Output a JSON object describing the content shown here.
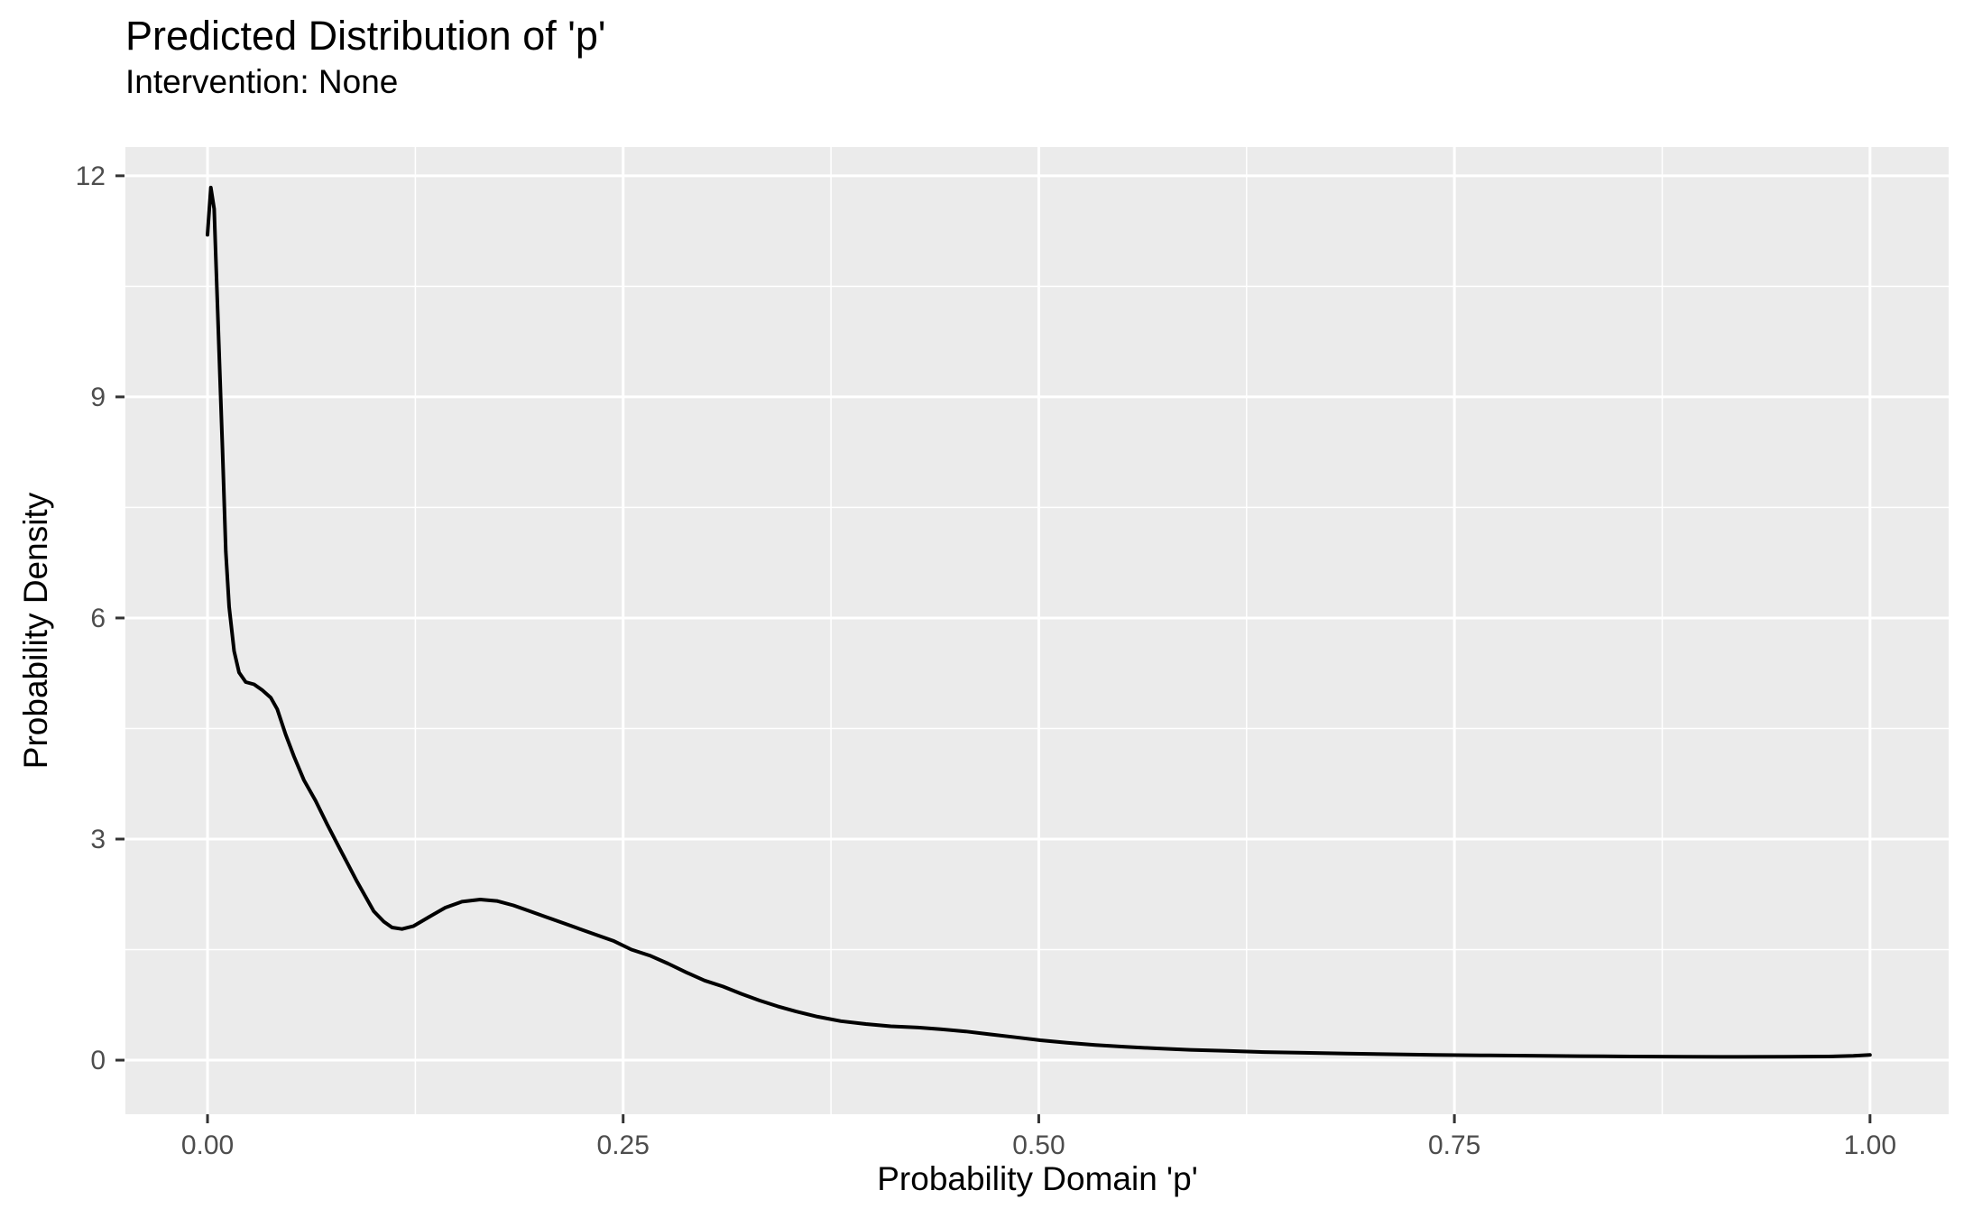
{
  "chart_data": {
    "type": "line",
    "title": "Predicted Distribution of 'p'",
    "subtitle": "Intervention: None",
    "xlabel": "Probability Domain 'p'",
    "ylabel": "Probability Density",
    "legend_position": "none",
    "panel_background": "#EBEBEB",
    "grid": {
      "major_color": "#FFFFFF",
      "minor_color": "#FFFFFF",
      "major": true,
      "minor": true
    },
    "tick_mark_color": "#333333",
    "tick_label_color": "#4d4d4d",
    "xlim": [
      -0.0494,
      1.0473
    ],
    "ylim": [
      -0.734,
      12.39
    ],
    "x_ticks": {
      "values": [
        0,
        0.25,
        0.5,
        0.75,
        1.0
      ],
      "labels": [
        "0.00",
        "0.25",
        "0.50",
        "0.75",
        "1.00"
      ]
    },
    "y_ticks": {
      "values": [
        0,
        3,
        6,
        9,
        12
      ],
      "labels": [
        "0",
        "3",
        "6",
        "9",
        "12"
      ]
    },
    "series": [
      {
        "name": "predicted-density-of-p",
        "color": "#000000",
        "width": 4,
        "points": [
          [
            0.0,
            11.2
          ],
          [
            0.002,
            11.84
          ],
          [
            0.004,
            11.55
          ],
          [
            0.005,
            10.9
          ],
          [
            0.007,
            9.6
          ],
          [
            0.009,
            8.3
          ],
          [
            0.011,
            6.9
          ],
          [
            0.013,
            6.15
          ],
          [
            0.016,
            5.55
          ],
          [
            0.019,
            5.26
          ],
          [
            0.023,
            5.13
          ],
          [
            0.028,
            5.1
          ],
          [
            0.033,
            5.02
          ],
          [
            0.038,
            4.92
          ],
          [
            0.042,
            4.76
          ],
          [
            0.047,
            4.42
          ],
          [
            0.052,
            4.12
          ],
          [
            0.058,
            3.8
          ],
          [
            0.065,
            3.52
          ],
          [
            0.072,
            3.2
          ],
          [
            0.08,
            2.85
          ],
          [
            0.09,
            2.42
          ],
          [
            0.1,
            2.02
          ],
          [
            0.106,
            1.88
          ],
          [
            0.111,
            1.8
          ],
          [
            0.117,
            1.78
          ],
          [
            0.124,
            1.82
          ],
          [
            0.133,
            1.94
          ],
          [
            0.143,
            2.07
          ],
          [
            0.153,
            2.15
          ],
          [
            0.164,
            2.18
          ],
          [
            0.174,
            2.16
          ],
          [
            0.184,
            2.1
          ],
          [
            0.194,
            2.02
          ],
          [
            0.204,
            1.94
          ],
          [
            0.214,
            1.86
          ],
          [
            0.224,
            1.78
          ],
          [
            0.234,
            1.7
          ],
          [
            0.244,
            1.62
          ],
          [
            0.255,
            1.5
          ],
          [
            0.266,
            1.42
          ],
          [
            0.277,
            1.31
          ],
          [
            0.288,
            1.19
          ],
          [
            0.299,
            1.08
          ],
          [
            0.31,
            1.0
          ],
          [
            0.321,
            0.9
          ],
          [
            0.332,
            0.81
          ],
          [
            0.343,
            0.73
          ],
          [
            0.354,
            0.66
          ],
          [
            0.367,
            0.59
          ],
          [
            0.381,
            0.53
          ],
          [
            0.396,
            0.49
          ],
          [
            0.411,
            0.46
          ],
          [
            0.426,
            0.445
          ],
          [
            0.441,
            0.42
          ],
          [
            0.456,
            0.39
          ],
          [
            0.471,
            0.35
          ],
          [
            0.486,
            0.31
          ],
          [
            0.501,
            0.27
          ],
          [
            0.517,
            0.235
          ],
          [
            0.534,
            0.205
          ],
          [
            0.552,
            0.18
          ],
          [
            0.571,
            0.16
          ],
          [
            0.591,
            0.14
          ],
          [
            0.613,
            0.125
          ],
          [
            0.636,
            0.11
          ],
          [
            0.66,
            0.1
          ],
          [
            0.685,
            0.09
          ],
          [
            0.711,
            0.08
          ],
          [
            0.738,
            0.072
          ],
          [
            0.766,
            0.065
          ],
          [
            0.795,
            0.06
          ],
          [
            0.825,
            0.055
          ],
          [
            0.856,
            0.05
          ],
          [
            0.888,
            0.047
          ],
          [
            0.921,
            0.045
          ],
          [
            0.95,
            0.046
          ],
          [
            0.975,
            0.05
          ],
          [
            0.99,
            0.058
          ],
          [
            1.0,
            0.07
          ]
        ]
      }
    ]
  }
}
